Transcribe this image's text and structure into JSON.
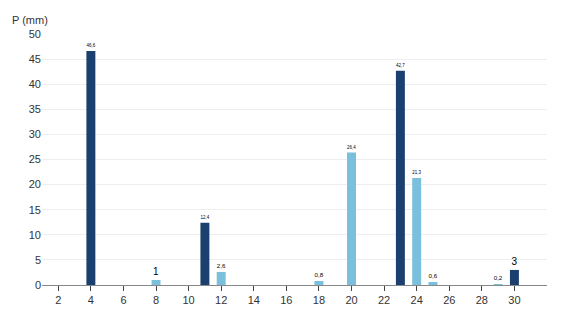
{
  "chart_data": {
    "type": "bar",
    "ylabel": "P (mm)",
    "x": [
      4,
      11,
      23,
      30,
      8,
      12,
      18,
      20,
      24,
      25,
      29
    ],
    "values": [
      46.6,
      12.4,
      42.7,
      3.0,
      1.0,
      2.6,
      0.8,
      26.4,
      21.3,
      0.6,
      0.2
    ],
    "value_labels": [
      "46,6",
      "12,4",
      "42,7",
      "3",
      "1",
      "2,6",
      "0,8",
      "26,4",
      "21,3",
      "0,6",
      "0,2"
    ],
    "colors": [
      "#1B3F6E",
      "#1B3F6E",
      "#1B3F6E",
      "#1B3F6E",
      "#7ABFDC",
      "#7ABFDC",
      "#7ABFDC",
      "#7ABFDC",
      "#7ABFDC",
      "#7ABFDC",
      "#7ABFDC"
    ],
    "xlim": [
      1,
      32
    ],
    "xticks": [
      2,
      4,
      6,
      8,
      10,
      12,
      14,
      16,
      18,
      20,
      22,
      24,
      26,
      28,
      30
    ],
    "ylim": [
      0,
      50
    ],
    "yticks": [
      0,
      5,
      10,
      15,
      20,
      25,
      30,
      35,
      40,
      45,
      50
    ],
    "grid": true,
    "data_labels": true
  }
}
